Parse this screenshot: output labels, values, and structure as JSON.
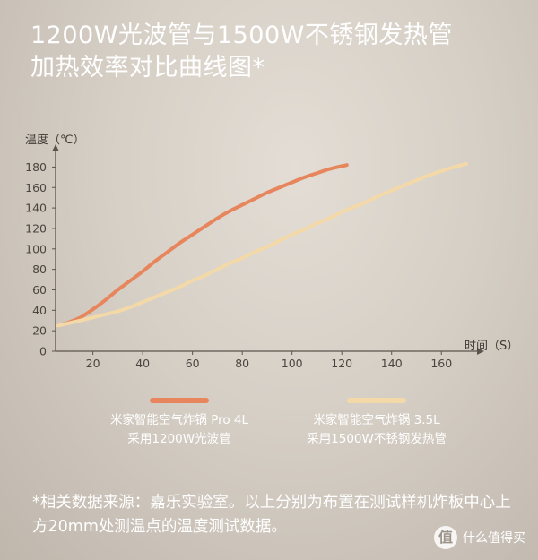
{
  "title": {
    "line1": "1200W光波管与1500W不锈钢发热管",
    "line2": "加热效率对比曲线图*"
  },
  "chart_data": {
    "type": "line",
    "ylabel": "温度（℃）",
    "xlabel": "时间（S）",
    "ylim": [
      0,
      190
    ],
    "xlim": [
      5,
      170
    ],
    "y_ticks": [
      0,
      20,
      40,
      60,
      80,
      100,
      120,
      140,
      160,
      180
    ],
    "x_ticks": [
      20,
      40,
      60,
      80,
      100,
      120,
      140,
      160
    ],
    "grid": false,
    "legend_position": "bottom",
    "series": [
      {
        "name_line1": "米家智能空气炸锅 Pro 4L",
        "name_line2": "采用1200W光波管",
        "color": "#e7865c",
        "x": [
          6,
          10,
          15,
          20,
          25,
          30,
          35,
          40,
          45,
          50,
          55,
          60,
          65,
          70,
          75,
          80,
          85,
          90,
          95,
          100,
          105,
          110,
          115,
          122
        ],
        "y": [
          25,
          28,
          33,
          41,
          50,
          60,
          69,
          78,
          88,
          97,
          106,
          114,
          122,
          130,
          137,
          143,
          149,
          155,
          160,
          165,
          170,
          174,
          178,
          182
        ]
      },
      {
        "name_line1": "米家智能空气炸锅 3.5L",
        "name_line2": "采用1500W不锈钢发热管",
        "color": "#f3d9a8",
        "x": [
          6,
          15,
          20,
          25,
          30,
          35,
          40,
          45,
          50,
          55,
          60,
          65,
          70,
          75,
          80,
          85,
          90,
          95,
          100,
          105,
          110,
          115,
          120,
          125,
          130,
          135,
          140,
          145,
          150,
          155,
          160,
          165,
          170
        ],
        "y": [
          25,
          30,
          33,
          36,
          39,
          43,
          48,
          53,
          58,
          63,
          69,
          74,
          80,
          86,
          91,
          97,
          102,
          108,
          114,
          119,
          125,
          130,
          136,
          141,
          146,
          152,
          157,
          162,
          167,
          172,
          176,
          180,
          183
        ]
      }
    ]
  },
  "note": "*相关数据来源：嘉乐实验室。以上分别为布置在测试样机炸板中心上方20mm处测温点的温度测试数据。",
  "watermark": {
    "logo_glyph": "值",
    "text": "什么值得买"
  }
}
